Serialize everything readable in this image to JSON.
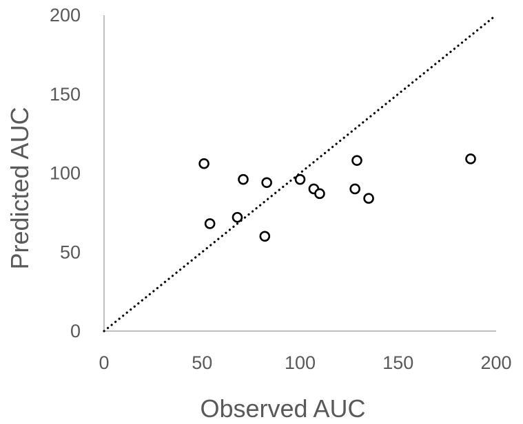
{
  "chart_data": {
    "type": "scatter",
    "title": "",
    "xlabel": "Observed AUC",
    "ylabel": "Predicted AUC",
    "xlim": [
      0,
      200
    ],
    "ylim": [
      0,
      200
    ],
    "xticks": [
      0,
      50,
      100,
      150,
      200
    ],
    "yticks": [
      0,
      50,
      100,
      150,
      200
    ],
    "x_tick_labels": [
      "0",
      "50",
      "100",
      "150",
      "200"
    ],
    "y_tick_labels": [
      "0",
      "50",
      "100",
      "150",
      "200"
    ],
    "grid": false,
    "legend": "none",
    "reference_line": {
      "kind": "identity",
      "style": "dotted",
      "from": [
        0,
        0
      ],
      "to": [
        200,
        200
      ]
    },
    "series": [
      {
        "marker": "open-circle",
        "x": [
          51,
          54,
          68,
          71,
          82,
          83,
          100,
          107,
          110,
          128,
          129,
          135,
          187
        ],
        "y": [
          106,
          68,
          72,
          96,
          60,
          94,
          96,
          90,
          87,
          90,
          108,
          84,
          109
        ]
      }
    ],
    "colors": {
      "axis": "#bfbfbf",
      "text": "#595959",
      "marker": "#000000",
      "reference_line": "#000000"
    }
  }
}
